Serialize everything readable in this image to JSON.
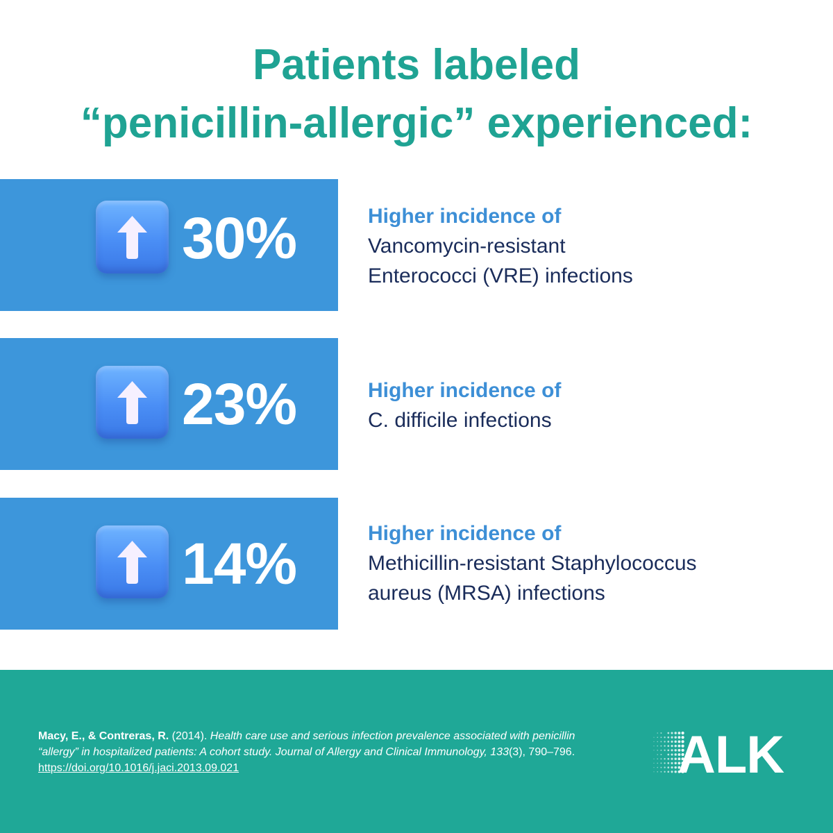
{
  "headline": {
    "line1": "Patients labeled",
    "line2": "“penicillin-allergic” experienced:"
  },
  "stats": [
    {
      "value": "30%",
      "icon": "up-arrow-icon",
      "heading": "Higher incidence of",
      "line1": "Vancomycin-resistant",
      "line2": "Enterococci (VRE) infections"
    },
    {
      "value": "23%",
      "icon": "up-arrow-icon",
      "heading": "Higher incidence of",
      "line1": "C. difficile infections",
      "line2": ""
    },
    {
      "value": "14%",
      "icon": "up-arrow-icon",
      "heading": "Higher incidence of",
      "line1": "Methicillin-resistant Staphylococcus",
      "line2": "aureus (MRSA) infections"
    }
  ],
  "citation": {
    "authors": "Macy, E., & Contreras, R.",
    "year": " (2014). ",
    "title": "Health care use and serious infection prevalence associated with penicillin “allergy” in hospitalized patients: A cohort study. Journal of Allergy and Clinical Immunology, 133",
    "issue_pages": "(3), 790–796.",
    "link": "https://doi.org/10.1016/j.jaci.2013.09.021"
  },
  "logo": {
    "text": "ALK"
  },
  "colors": {
    "headline": "#1fa393",
    "stat_box": "#3d96db",
    "heading": "#3d8fd6",
    "body_text": "#1a2c5a",
    "footer": "#1fa897"
  }
}
